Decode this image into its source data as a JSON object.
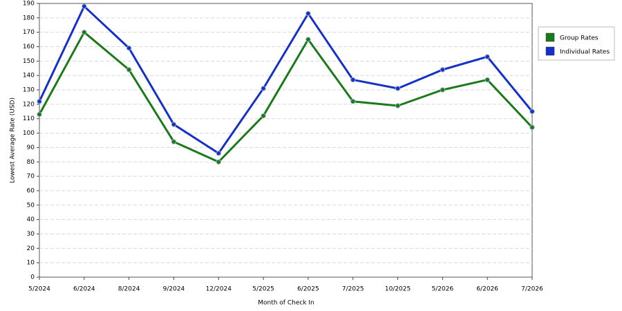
{
  "chart_data": {
    "type": "line",
    "x_label": "Month of Check In",
    "y_label": "Lowest Average Rate (USD)",
    "categories": [
      "5/2024",
      "6/2024",
      "8/2024",
      "9/2024",
      "12/2024",
      "5/2025",
      "6/2025",
      "7/2025",
      "10/2025",
      "5/2026",
      "6/2026",
      "7/2026"
    ],
    "series": [
      {
        "name": "Group Rates",
        "color": "#1a7a1a",
        "values": [
          113,
          170,
          144,
          94,
          80,
          112,
          165,
          122,
          119,
          130,
          137,
          104
        ]
      },
      {
        "name": "Individual Rates",
        "color": "#1530c8",
        "values": [
          122,
          188,
          159,
          106,
          86,
          131,
          183,
          137,
          131,
          144,
          153,
          115
        ]
      }
    ],
    "ylim": [
      0,
      190
    ],
    "yticks": [
      0,
      10,
      20,
      30,
      40,
      50,
      60,
      70,
      80,
      90,
      100,
      110,
      120,
      130,
      140,
      150,
      160,
      170,
      180,
      190
    ],
    "grid": true,
    "legend": "right"
  }
}
